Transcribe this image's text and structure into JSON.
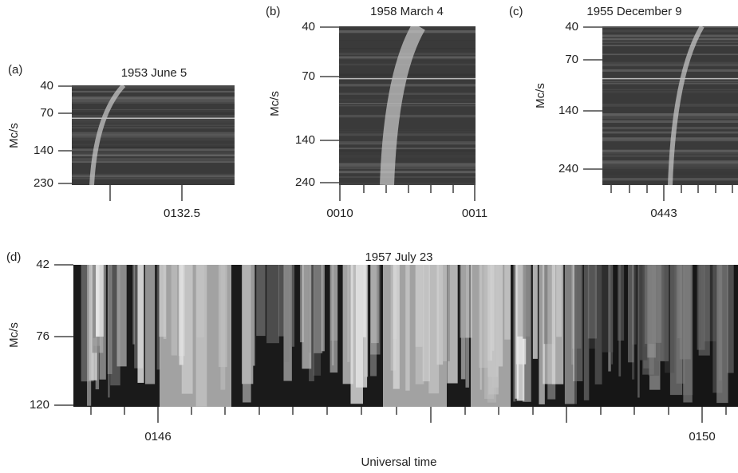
{
  "figure": {
    "panels": [
      {
        "label": "(a)",
        "title": "1953 June 5",
        "y_label": "Mc/s",
        "y_ticks": [
          "40",
          "70",
          "140",
          "230"
        ],
        "x_ticks": [
          "0132.5"
        ]
      },
      {
        "label": "(b)",
        "title": "1958 March 4",
        "y_label": "Mc/s",
        "y_ticks": [
          "40",
          "70",
          "140",
          "240"
        ],
        "x_ticks": [
          "0010",
          "0011"
        ]
      },
      {
        "label": "(c)",
        "title": "1955 December 9",
        "y_label": "Mc/s",
        "y_ticks": [
          "40",
          "70",
          "140",
          "240"
        ],
        "x_ticks": [
          "0443"
        ]
      },
      {
        "label": "(d)",
        "title": "1957 July 23",
        "y_label": "Mc/s",
        "y_ticks": [
          "42",
          "76",
          "120"
        ],
        "x_ticks": [
          "0146",
          "0150"
        ]
      }
    ],
    "x_label": "Universal time"
  }
}
